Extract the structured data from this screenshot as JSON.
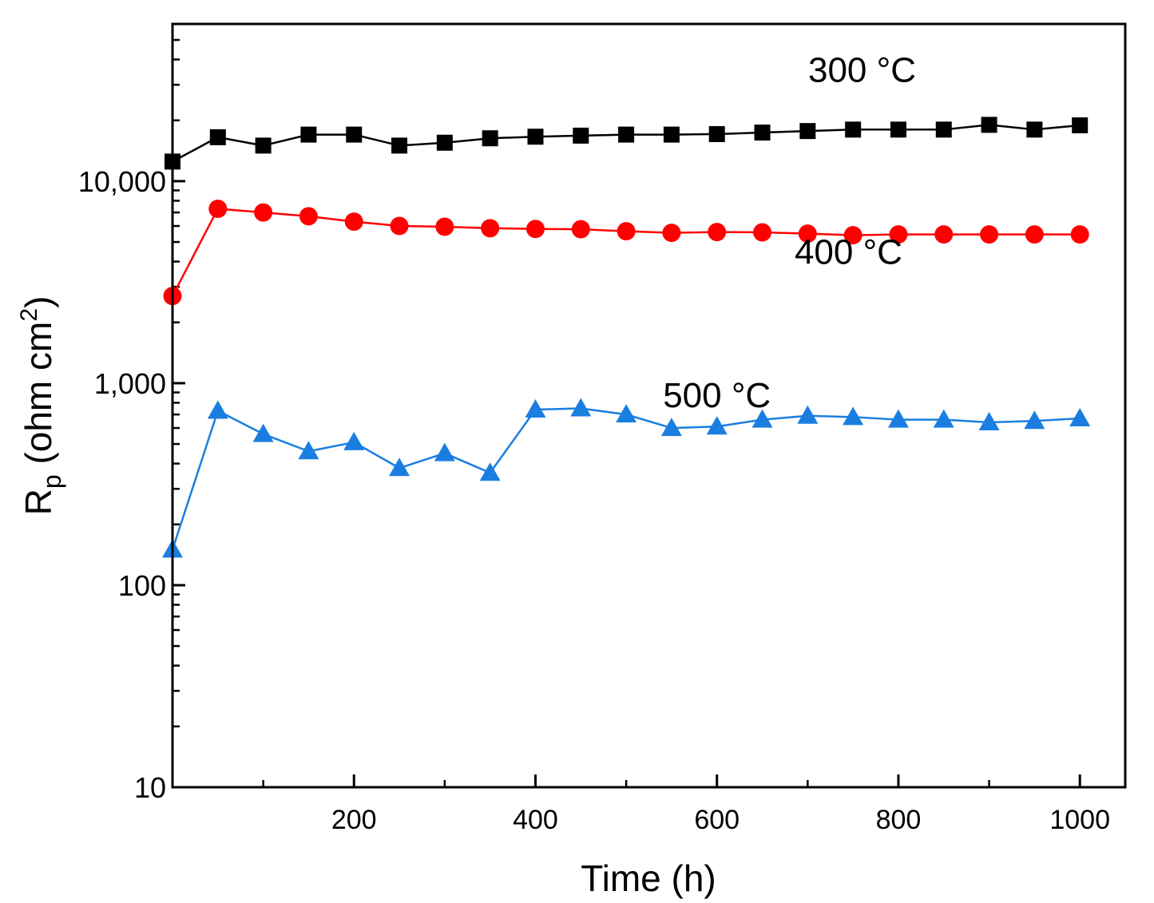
{
  "chart_data": {
    "type": "line",
    "title": "",
    "xlabel": "Time (h)",
    "ylabel": {
      "main": "R",
      "sub": "p",
      "unit_prefix": " (ohm cm",
      "unit_sup": "2",
      "unit_suffix": ")"
    },
    "xlim": [
      0,
      1050
    ],
    "ylim": [
      10,
      60000
    ],
    "yscale": "log",
    "x_ticks": [
      200,
      400,
      600,
      800,
      1000
    ],
    "x_tick_labels": [
      "200",
      "400",
      "600",
      "800",
      "1000"
    ],
    "y_ticks": [
      10,
      100,
      1000,
      10000
    ],
    "y_tick_labels": [
      "10",
      "100",
      "1,000",
      "10,000"
    ],
    "series": [
      {
        "name": "300 °C",
        "color": "#000000",
        "marker": "square",
        "x": [
          0,
          50,
          100,
          150,
          200,
          250,
          300,
          350,
          400,
          450,
          500,
          550,
          600,
          650,
          700,
          750,
          800,
          850,
          900,
          950,
          1000
        ],
        "y": [
          12500,
          16500,
          15000,
          17000,
          17000,
          15000,
          15500,
          16300,
          16600,
          16800,
          17000,
          17000,
          17100,
          17400,
          17700,
          18000,
          18000,
          18000,
          19000,
          18000,
          18900
        ]
      },
      {
        "name": "400 °C",
        "color": "#ff0000",
        "marker": "circle",
        "x": [
          0,
          50,
          100,
          150,
          200,
          250,
          300,
          350,
          400,
          450,
          500,
          550,
          600,
          650,
          700,
          750,
          800,
          850,
          900,
          950,
          1000
        ],
        "y": [
          2700,
          7300,
          7000,
          6700,
          6300,
          6000,
          5950,
          5850,
          5800,
          5780,
          5650,
          5550,
          5600,
          5580,
          5500,
          5400,
          5450,
          5450,
          5450,
          5450,
          5450
        ]
      },
      {
        "name": "500 °C",
        "color": "#1a7ee0",
        "marker": "triangle",
        "x": [
          0,
          50,
          100,
          150,
          200,
          250,
          300,
          350,
          400,
          450,
          500,
          550,
          600,
          650,
          700,
          750,
          800,
          850,
          900,
          950,
          1000
        ],
        "y": [
          150,
          730,
          560,
          460,
          510,
          380,
          450,
          360,
          740,
          750,
          700,
          600,
          610,
          660,
          690,
          680,
          660,
          660,
          640,
          650,
          670
        ]
      }
    ],
    "annotations": [
      {
        "text": "300 °C",
        "series": 0
      },
      {
        "text": "400 °C",
        "series": 1
      },
      {
        "text": "500 °C",
        "series": 2
      }
    ]
  }
}
